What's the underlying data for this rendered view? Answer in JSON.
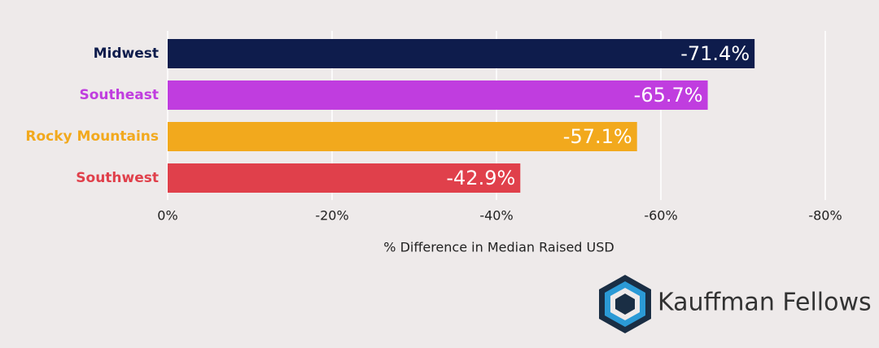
{
  "chart_data": {
    "type": "bar",
    "orientation": "horizontal",
    "categories": [
      "Midwest",
      "Southeast",
      "Rocky Mountains",
      "Southwest"
    ],
    "values": [
      -71.4,
      -65.7,
      -57.1,
      -42.9
    ],
    "value_labels": [
      "-71.4%",
      "-65.7%",
      "-57.1%",
      "-42.9%"
    ],
    "colors": [
      "#0e1c4c",
      "#c03ddf",
      "#f2a91d",
      "#e0404b"
    ],
    "xlabel": "% Difference in Median Raised USD",
    "xlim": [
      0,
      -80
    ],
    "xticks": [
      {
        "value": 0,
        "label": "0%"
      },
      {
        "value": -20,
        "label": "-20%"
      },
      {
        "value": -40,
        "label": "-40%"
      },
      {
        "value": -60,
        "label": "-60%"
      },
      {
        "value": -80,
        "label": "-80%"
      }
    ],
    "grid": true
  },
  "logo": {
    "text": "Kauffman Fellows"
  }
}
